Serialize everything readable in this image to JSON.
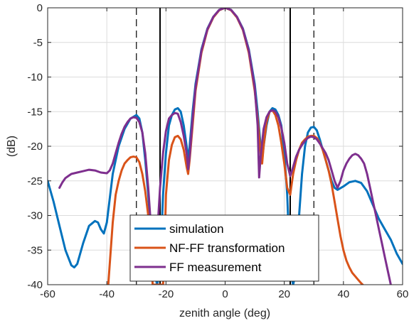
{
  "chart_data": {
    "type": "line",
    "xlabel": "zenith angle (deg)",
    "ylabel": "(dB)",
    "xlim": [
      -60,
      60
    ],
    "ylim": [
      -40,
      0
    ],
    "x_ticks": [
      -60,
      -40,
      -20,
      0,
      20,
      40,
      60
    ],
    "x_tick_labels": [
      "-60",
      "-40",
      "-20",
      "0",
      "20",
      "40",
      "60"
    ],
    "y_ticks": [
      0,
      -5,
      -10,
      -15,
      -20,
      -25,
      -30,
      -35,
      -40
    ],
    "y_tick_labels": [
      "0",
      "-5",
      "-10",
      "-15",
      "-20",
      "-25",
      "-30",
      "-35",
      "-40"
    ],
    "grid": true,
    "legend_position": "bottom-center",
    "vertical_lines": [
      {
        "x": -30,
        "style": "dashed",
        "color": "#000000"
      },
      {
        "x": 30,
        "style": "dashed",
        "color": "#000000"
      },
      {
        "x": -22,
        "style": "solid",
        "color": "#000000"
      },
      {
        "x": 22,
        "style": "solid",
        "color": "#000000"
      }
    ],
    "series": [
      {
        "name": "simulation",
        "color": "#0072BD",
        "points": [
          [
            -60,
            -25
          ],
          [
            -58,
            -28
          ],
          [
            -56,
            -31.5
          ],
          [
            -54,
            -35
          ],
          [
            -52,
            -37.2
          ],
          [
            -51,
            -37.5
          ],
          [
            -50,
            -37
          ],
          [
            -48,
            -34
          ],
          [
            -46,
            -31.5
          ],
          [
            -44,
            -30.8
          ],
          [
            -43,
            -31
          ],
          [
            -42,
            -32
          ],
          [
            -41,
            -32.6
          ],
          [
            -40,
            -31
          ],
          [
            -38,
            -24
          ],
          [
            -36,
            -20
          ],
          [
            -34,
            -17.5
          ],
          [
            -32,
            -16
          ],
          [
            -30,
            -15.5
          ],
          [
            -29,
            -16
          ],
          [
            -28,
            -18
          ],
          [
            -27,
            -22
          ],
          [
            -26,
            -27
          ],
          [
            -25,
            -33
          ],
          [
            -24,
            -38
          ],
          [
            -23,
            -40
          ],
          [
            -22,
            -38
          ],
          [
            -21,
            -27
          ],
          [
            -20,
            -21
          ],
          [
            -19,
            -17
          ],
          [
            -18,
            -15.5
          ],
          [
            -17,
            -14.7
          ],
          [
            -16,
            -14.5
          ],
          [
            -15,
            -15
          ],
          [
            -14,
            -17
          ],
          [
            -13,
            -20
          ],
          [
            -12.5,
            -22
          ],
          [
            -12,
            -20
          ],
          [
            -11,
            -15
          ],
          [
            -10,
            -11
          ],
          [
            -8,
            -6
          ],
          [
            -6,
            -3
          ],
          [
            -4,
            -1.3
          ],
          [
            -2,
            -0.3
          ],
          [
            0,
            0
          ],
          [
            2,
            -0.3
          ],
          [
            4,
            -1.3
          ],
          [
            6,
            -3
          ],
          [
            8,
            -6
          ],
          [
            10,
            -11
          ],
          [
            11,
            -15
          ],
          [
            12,
            -20
          ],
          [
            12.5,
            -22
          ],
          [
            13,
            -20
          ],
          [
            14,
            -17
          ],
          [
            15,
            -15
          ],
          [
            16,
            -14.5
          ],
          [
            17,
            -14.7
          ],
          [
            18,
            -15.5
          ],
          [
            19,
            -17
          ],
          [
            20,
            -21
          ],
          [
            21,
            -27
          ],
          [
            22,
            -38
          ],
          [
            23,
            -40
          ],
          [
            24,
            -38
          ],
          [
            25,
            -30
          ],
          [
            26,
            -24
          ],
          [
            27,
            -20
          ],
          [
            28,
            -18
          ],
          [
            29,
            -17.3
          ],
          [
            30,
            -17.2
          ],
          [
            31,
            -17.7
          ],
          [
            32,
            -19
          ],
          [
            33,
            -20.5
          ],
          [
            34,
            -22
          ],
          [
            35,
            -23.5
          ],
          [
            36,
            -25
          ],
          [
            37,
            -26
          ],
          [
            38,
            -26.3
          ],
          [
            40,
            -25.8
          ],
          [
            42,
            -25.2
          ],
          [
            44,
            -25
          ],
          [
            46,
            -25.3
          ],
          [
            48,
            -26.5
          ],
          [
            50,
            -28.5
          ],
          [
            52,
            -30.5
          ],
          [
            54,
            -32
          ],
          [
            56,
            -33.5
          ],
          [
            58,
            -35.5
          ],
          [
            60,
            -37
          ]
        ]
      },
      {
        "name": "NF-FF transformation",
        "color": "#D95319",
        "points": [
          [
            -39.5,
            -40
          ],
          [
            -39,
            -37
          ],
          [
            -38,
            -31
          ],
          [
            -37,
            -27
          ],
          [
            -36,
            -25
          ],
          [
            -35,
            -23.5
          ],
          [
            -34,
            -22.5
          ],
          [
            -33,
            -22
          ],
          [
            -32,
            -21.6
          ],
          [
            -31,
            -21.5
          ],
          [
            -30,
            -21.6
          ],
          [
            -29,
            -22.3
          ],
          [
            -28,
            -24
          ],
          [
            -27,
            -26.5
          ],
          [
            -26,
            -30
          ],
          [
            -25,
            -35
          ],
          [
            -24.5,
            -40
          ],
          [
            -21,
            -40
          ],
          [
            -20.5,
            -35
          ],
          [
            -20,
            -27
          ],
          [
            -19,
            -22
          ],
          [
            -18,
            -19.8
          ],
          [
            -17,
            -18.7
          ],
          [
            -16,
            -18.5
          ],
          [
            -15,
            -19
          ],
          [
            -14,
            -20.5
          ],
          [
            -13,
            -23
          ],
          [
            -12.5,
            -24
          ],
          [
            -12,
            -22
          ],
          [
            -11,
            -17
          ],
          [
            -10,
            -12
          ],
          [
            -8,
            -6.5
          ],
          [
            -6,
            -3.2
          ],
          [
            -4,
            -1.4
          ],
          [
            -2,
            -0.35
          ],
          [
            0,
            0
          ],
          [
            2,
            -0.35
          ],
          [
            4,
            -1.4
          ],
          [
            6,
            -3.2
          ],
          [
            8,
            -6.5
          ],
          [
            10,
            -12
          ],
          [
            11,
            -16
          ],
          [
            12,
            -21
          ],
          [
            12.5,
            -22.5
          ],
          [
            13,
            -20
          ],
          [
            14,
            -16.5
          ],
          [
            15,
            -15
          ],
          [
            16,
            -14.8
          ],
          [
            17,
            -15.5
          ],
          [
            18,
            -17
          ],
          [
            19,
            -19.5
          ],
          [
            20,
            -22.5
          ],
          [
            21,
            -26
          ],
          [
            22,
            -27
          ],
          [
            23,
            -24
          ],
          [
            24,
            -22
          ],
          [
            25,
            -20.5
          ],
          [
            26,
            -19.5
          ],
          [
            27,
            -19
          ],
          [
            28,
            -18.6
          ],
          [
            29,
            -18.5
          ],
          [
            30,
            -18.5
          ],
          [
            31,
            -18.8
          ],
          [
            32,
            -19.5
          ],
          [
            33,
            -20.5
          ],
          [
            34,
            -22
          ],
          [
            35,
            -23.5
          ],
          [
            36,
            -25.5
          ],
          [
            37,
            -28
          ],
          [
            38,
            -30.5
          ],
          [
            39,
            -33
          ],
          [
            40,
            -35
          ],
          [
            41,
            -36.5
          ],
          [
            42,
            -37.5
          ],
          [
            43,
            -38.3
          ],
          [
            44,
            -38.8
          ],
          [
            45,
            -39.3
          ],
          [
            46,
            -39.8
          ],
          [
            46.5,
            -40
          ]
        ]
      },
      {
        "name": "FF measurement",
        "color": "#7E2F8E",
        "points": [
          [
            -56,
            -26
          ],
          [
            -55,
            -25.2
          ],
          [
            -54,
            -24.6
          ],
          [
            -53,
            -24.3
          ],
          [
            -52,
            -24
          ],
          [
            -50,
            -23.8
          ],
          [
            -48,
            -23.6
          ],
          [
            -46,
            -23.4
          ],
          [
            -44,
            -23.5
          ],
          [
            -42,
            -23.8
          ],
          [
            -40,
            -23.9
          ],
          [
            -39,
            -23.5
          ],
          [
            -38,
            -22.5
          ],
          [
            -37,
            -21
          ],
          [
            -36,
            -19.5
          ],
          [
            -35,
            -18.2
          ],
          [
            -34,
            -17.2
          ],
          [
            -33,
            -16.5
          ],
          [
            -32,
            -16
          ],
          [
            -31,
            -15.8
          ],
          [
            -30,
            -15.9
          ],
          [
            -29,
            -16.5
          ],
          [
            -28,
            -18
          ],
          [
            -27,
            -21
          ],
          [
            -26,
            -26
          ],
          [
            -25,
            -32
          ],
          [
            -24.3,
            -37
          ],
          [
            -23,
            -33
          ],
          [
            -22,
            -26
          ],
          [
            -21,
            -21
          ],
          [
            -20,
            -17.8
          ],
          [
            -19,
            -16
          ],
          [
            -18,
            -15.5
          ],
          [
            -17,
            -15.2
          ],
          [
            -16,
            -15.3
          ],
          [
            -15,
            -16.5
          ],
          [
            -14,
            -18.5
          ],
          [
            -13,
            -21
          ],
          [
            -12.5,
            -23.3
          ],
          [
            -12,
            -21.5
          ],
          [
            -11,
            -16
          ],
          [
            -10,
            -11.5
          ],
          [
            -8,
            -6.2
          ],
          [
            -6,
            -3.1
          ],
          [
            -4,
            -1.3
          ],
          [
            -2,
            -0.3
          ],
          [
            0,
            0
          ],
          [
            2,
            -0.3
          ],
          [
            4,
            -1.3
          ],
          [
            6,
            -3.1
          ],
          [
            8,
            -6.2
          ],
          [
            10,
            -11.5
          ],
          [
            11,
            -17
          ],
          [
            11.5,
            -24.5
          ],
          [
            12,
            -21.5
          ],
          [
            13,
            -17.5
          ],
          [
            14,
            -15.8
          ],
          [
            15,
            -15
          ],
          [
            16,
            -14.8
          ],
          [
            17,
            -15
          ],
          [
            18,
            -15.8
          ],
          [
            19,
            -17.3
          ],
          [
            20,
            -19.5
          ],
          [
            21,
            -22.5
          ],
          [
            22,
            -24.3
          ],
          [
            23,
            -23
          ],
          [
            24,
            -21.5
          ],
          [
            25,
            -20.5
          ],
          [
            26,
            -19.8
          ],
          [
            27,
            -19.2
          ],
          [
            28,
            -18.8
          ],
          [
            29,
            -18.6
          ],
          [
            30,
            -18.7
          ],
          [
            31,
            -19
          ],
          [
            32,
            -19.6
          ],
          [
            33,
            -20.3
          ],
          [
            34,
            -21
          ],
          [
            35,
            -22
          ],
          [
            36,
            -23.5
          ],
          [
            37,
            -25
          ],
          [
            38,
            -26
          ],
          [
            39,
            -25
          ],
          [
            40,
            -23.5
          ],
          [
            41,
            -22.5
          ],
          [
            42,
            -21.8
          ],
          [
            43,
            -21.3
          ],
          [
            44,
            -21.1
          ],
          [
            45,
            -21.3
          ],
          [
            46,
            -21.8
          ],
          [
            47,
            -22.5
          ],
          [
            48,
            -24
          ],
          [
            49,
            -26
          ],
          [
            50,
            -28
          ],
          [
            51,
            -30
          ],
          [
            52,
            -32
          ],
          [
            53,
            -34
          ],
          [
            54,
            -36
          ],
          [
            55,
            -38
          ],
          [
            56,
            -40
          ]
        ]
      }
    ]
  }
}
